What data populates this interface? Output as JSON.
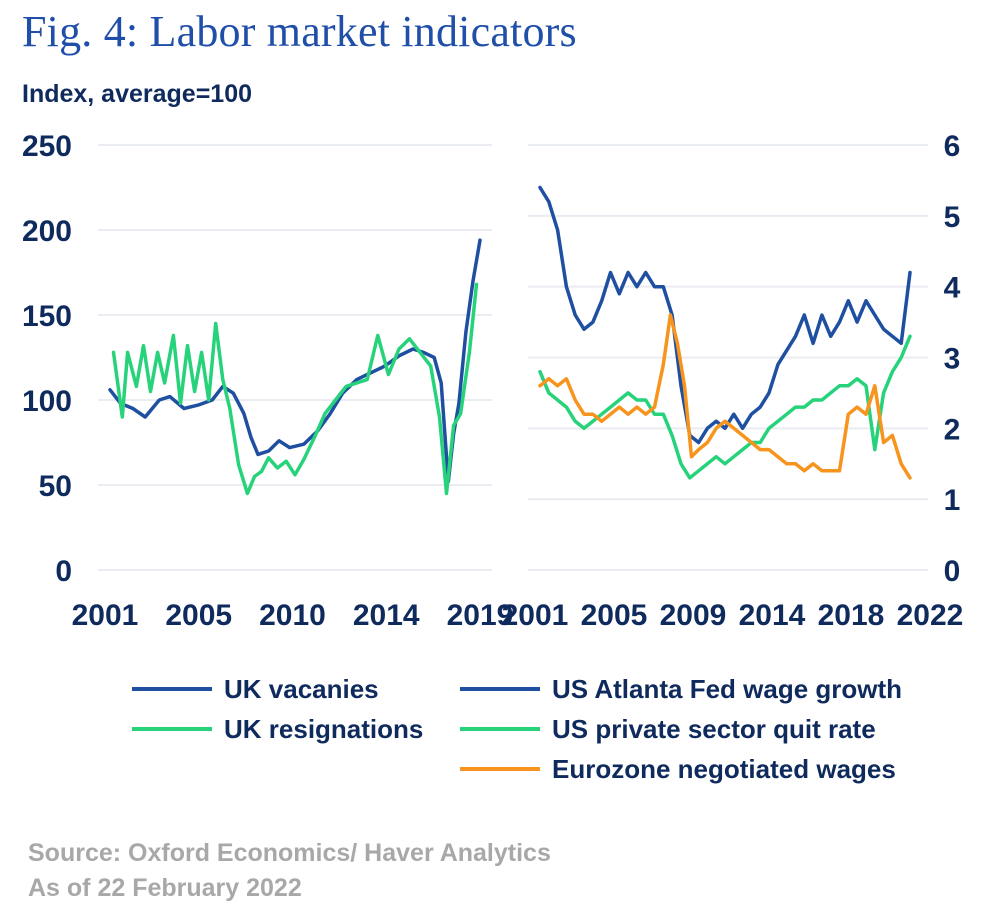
{
  "title": "Fig. 4: Labor market indicators",
  "unit_label": "Index, average=100",
  "source_lines": [
    "Source: Oxford Economics/ Haver Analytics",
    "As of 22 February 2022"
  ],
  "colors": {
    "uk_vacancies": "#1f4fa0",
    "uk_resignations": "#27d37a",
    "us_wage": "#1f4fa0",
    "us_quit": "#27d37a",
    "eurozone": "#f7941d",
    "grid": "#e9ecf1",
    "text": "#0f2a5c"
  },
  "legend": [
    {
      "label": "UK vacanies",
      "color": "#1f4fa0"
    },
    {
      "label": "UK resignations",
      "color": "#27d37a"
    },
    {
      "label": "US Atlanta Fed wage growth",
      "color": "#1f4fa0"
    },
    {
      "label": "US private sector quit rate",
      "color": "#27d37a"
    },
    {
      "label": "Eurozone negotiated wages",
      "color": "#f7941d"
    }
  ],
  "chart_data": [
    {
      "type": "line",
      "panel": "UK",
      "ylim": [
        0,
        250
      ],
      "yticks": [
        "0",
        "50",
        "100",
        "150",
        "200",
        "250"
      ],
      "xlim": [
        2001,
        2022
      ],
      "xticks": [
        "2001",
        "2005",
        "2010",
        "2014",
        "2019"
      ],
      "grid": true,
      "series": [
        {
          "name": "UK vacanies",
          "x": [
            2001.0,
            2001.6,
            2002.3,
            2003.0,
            2003.8,
            2004.4,
            2005.2,
            2006.0,
            2006.8,
            2007.4,
            2008.0,
            2008.6,
            2009.0,
            2009.4,
            2010.0,
            2010.6,
            2011.2,
            2012.0,
            2012.8,
            2013.5,
            2014.2,
            2015.0,
            2015.8,
            2016.6,
            2017.4,
            2018.2,
            2018.8,
            2019.4,
            2019.8,
            2020.2,
            2020.5,
            2020.8,
            2021.2,
            2021.6,
            2022.0
          ],
          "y": [
            106,
            98,
            95,
            90,
            100,
            102,
            95,
            97,
            100,
            108,
            104,
            92,
            78,
            68,
            70,
            76,
            72,
            74,
            82,
            92,
            104,
            112,
            116,
            120,
            126,
            130,
            128,
            125,
            110,
            52,
            80,
            98,
            140,
            170,
            194
          ]
        },
        {
          "name": "UK resignations",
          "x": [
            2001.2,
            2001.7,
            2002.0,
            2002.5,
            2002.9,
            2003.3,
            2003.7,
            2004.1,
            2004.6,
            2005.0,
            2005.4,
            2005.8,
            2006.2,
            2006.6,
            2007.0,
            2007.4,
            2007.8,
            2008.3,
            2008.8,
            2009.2,
            2009.6,
            2010.0,
            2010.5,
            2011.0,
            2011.5,
            2012.0,
            2012.6,
            2013.2,
            2013.8,
            2014.4,
            2015.0,
            2015.6,
            2016.2,
            2016.8,
            2017.4,
            2018.0,
            2018.6,
            2019.2,
            2019.7,
            2020.1,
            2020.5,
            2020.9,
            2021.4,
            2021.8
          ],
          "y": [
            128,
            90,
            128,
            108,
            132,
            105,
            128,
            110,
            138,
            98,
            132,
            105,
            128,
            100,
            145,
            112,
            95,
            62,
            45,
            55,
            58,
            66,
            60,
            64,
            56,
            65,
            78,
            92,
            100,
            108,
            110,
            112,
            138,
            115,
            130,
            136,
            128,
            120,
            90,
            45,
            85,
            92,
            128,
            168
          ]
        }
      ]
    },
    {
      "type": "line",
      "panel": "US/Eurozone",
      "ylim": [
        0,
        6
      ],
      "yticks": [
        "0",
        "1",
        "2",
        "3",
        "4",
        "5",
        "6"
      ],
      "xlim": [
        2001,
        2022
      ],
      "xticks": [
        "2001",
        "2005",
        "2009",
        "2014",
        "2018",
        "2022"
      ],
      "grid": true,
      "series": [
        {
          "name": "US Atlanta Fed wage growth",
          "x": [
            2001.0,
            2001.5,
            2002.0,
            2002.5,
            2003.0,
            2003.5,
            2004.0,
            2004.5,
            2005.0,
            2005.5,
            2006.0,
            2006.5,
            2007.0,
            2007.5,
            2008.0,
            2008.5,
            2009.0,
            2009.5,
            2010.0,
            2010.5,
            2011.0,
            2011.5,
            2012.0,
            2012.5,
            2013.0,
            2013.5,
            2014.0,
            2014.5,
            2015.0,
            2015.5,
            2016.0,
            2016.5,
            2017.0,
            2017.5,
            2018.0,
            2018.5,
            2019.0,
            2019.5,
            2020.0,
            2020.5,
            2021.0,
            2021.5,
            2022.0
          ],
          "y": [
            5.4,
            5.2,
            4.8,
            4.0,
            3.6,
            3.4,
            3.5,
            3.8,
            4.2,
            3.9,
            4.2,
            4.0,
            4.2,
            4.0,
            4.0,
            3.6,
            2.6,
            1.9,
            1.8,
            2.0,
            2.1,
            2.0,
            2.2,
            2.0,
            2.2,
            2.3,
            2.5,
            2.9,
            3.1,
            3.3,
            3.6,
            3.2,
            3.6,
            3.3,
            3.5,
            3.8,
            3.5,
            3.8,
            3.6,
            3.4,
            3.3,
            3.2,
            4.2
          ]
        },
        {
          "name": "US private sector quit rate",
          "x": [
            2001.0,
            2001.5,
            2002.0,
            2002.5,
            2003.0,
            2003.5,
            2004.0,
            2004.5,
            2005.0,
            2005.5,
            2006.0,
            2006.5,
            2007.0,
            2007.5,
            2008.0,
            2008.5,
            2009.0,
            2009.5,
            2010.0,
            2010.5,
            2011.0,
            2011.5,
            2012.0,
            2012.5,
            2013.0,
            2013.5,
            2014.0,
            2014.5,
            2015.0,
            2015.5,
            2016.0,
            2016.5,
            2017.0,
            2017.5,
            2018.0,
            2018.5,
            2019.0,
            2019.5,
            2020.0,
            2020.5,
            2021.0,
            2021.5,
            2022.0
          ],
          "y": [
            2.8,
            2.5,
            2.4,
            2.3,
            2.1,
            2.0,
            2.1,
            2.2,
            2.3,
            2.4,
            2.5,
            2.4,
            2.4,
            2.2,
            2.2,
            1.9,
            1.5,
            1.3,
            1.4,
            1.5,
            1.6,
            1.5,
            1.6,
            1.7,
            1.8,
            1.8,
            2.0,
            2.1,
            2.2,
            2.3,
            2.3,
            2.4,
            2.4,
            2.5,
            2.6,
            2.6,
            2.7,
            2.6,
            1.7,
            2.5,
            2.8,
            3.0,
            3.3
          ]
        },
        {
          "name": "Eurozone negotiated wages",
          "x": [
            2001.0,
            2001.5,
            2002.0,
            2002.5,
            2003.0,
            2003.5,
            2004.0,
            2004.5,
            2005.0,
            2005.5,
            2006.0,
            2006.5,
            2007.0,
            2007.5,
            2008.0,
            2008.4,
            2008.8,
            2009.2,
            2009.6,
            2010.0,
            2010.5,
            2011.0,
            2011.5,
            2012.0,
            2012.5,
            2013.0,
            2013.5,
            2014.0,
            2014.5,
            2015.0,
            2015.5,
            2016.0,
            2016.5,
            2017.0,
            2017.5,
            2018.0,
            2018.5,
            2019.0,
            2019.5,
            2020.0,
            2020.5,
            2021.0,
            2021.5,
            2022.0
          ],
          "y": [
            2.6,
            2.7,
            2.6,
            2.7,
            2.4,
            2.2,
            2.2,
            2.1,
            2.2,
            2.3,
            2.2,
            2.3,
            2.2,
            2.3,
            2.9,
            3.6,
            3.2,
            2.6,
            1.6,
            1.7,
            1.8,
            2.0,
            2.1,
            2.0,
            1.9,
            1.8,
            1.7,
            1.7,
            1.6,
            1.5,
            1.5,
            1.4,
            1.5,
            1.4,
            1.4,
            1.4,
            2.2,
            2.3,
            2.2,
            2.6,
            1.8,
            1.9,
            1.5,
            1.3
          ]
        }
      ]
    }
  ]
}
